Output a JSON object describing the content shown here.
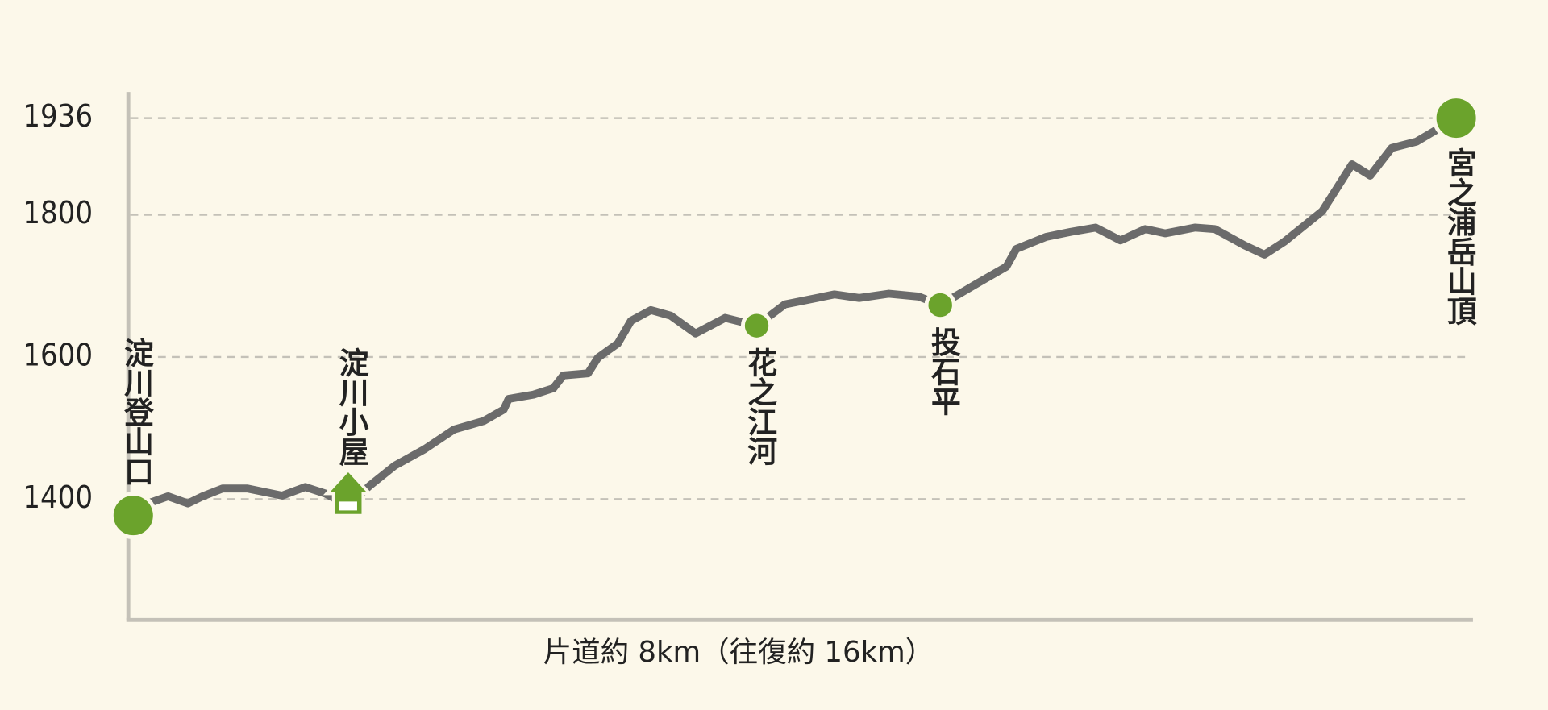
{
  "chart_data": {
    "type": "line",
    "x_label": "片道約 8km（往復約 16km）",
    "xlim": [
      0,
      8
    ],
    "ylim": [
      1230,
      1970
    ],
    "yticks": [
      1400,
      1600,
      1800,
      1936
    ],
    "grid": true,
    "x": [
      0,
      0.09,
      0.21,
      0.33,
      0.42,
      0.54,
      0.69,
      0.9,
      1.04,
      1.16,
      1.3,
      1.43,
      1.58,
      1.76,
      1.94,
      2.12,
      2.24,
      2.27,
      2.42,
      2.54,
      2.6,
      2.75,
      2.81,
      2.93,
      3.01,
      3.13,
      3.25,
      3.4,
      3.58,
      3.77,
      3.94,
      4.09,
      4.24,
      4.39,
      4.57,
      4.75,
      4.88,
      5.1,
      5.28,
      5.34,
      5.52,
      5.67,
      5.82,
      5.97,
      6.12,
      6.24,
      6.42,
      6.54,
      6.72,
      6.84,
      6.96,
      7.19,
      7.37,
      7.48,
      7.61,
      7.76,
      8
    ],
    "series": [
      {
        "color": "#6b6b6b",
        "values": [
          1377,
          1394,
          1404,
          1394,
          1404,
          1415,
          1415,
          1405,
          1417,
          1408,
          1391,
          1419,
          1447,
          1470,
          1498,
          1510,
          1526,
          1541,
          1547,
          1556,
          1574,
          1577,
          1599,
          1619,
          1651,
          1666,
          1658,
          1633,
          1655,
          1644,
          1674,
          1681,
          1688,
          1683,
          1689,
          1685,
          1673,
          1703,
          1727,
          1752,
          1769,
          1776,
          1782,
          1764,
          1780,
          1774,
          1782,
          1780,
          1757,
          1744,
          1762,
          1805,
          1871,
          1855,
          1894,
          1903,
          1936
        ]
      }
    ],
    "marker_color": "#6ba32c",
    "waypoints": [
      {
        "label": "淀川登山口",
        "x": 0,
        "value": 1377,
        "marker": "circle-large",
        "label_position": "above"
      },
      {
        "label": "淀川小屋",
        "x": 1.3,
        "value": 1391,
        "marker": "hut",
        "label_position": "above"
      },
      {
        "label": "花之江河",
        "x": 3.77,
        "value": 1644,
        "marker": "circle",
        "label_position": "below"
      },
      {
        "label": "投石平",
        "x": 4.88,
        "value": 1673,
        "marker": "circle",
        "label_position": "below"
      },
      {
        "label": "宮之浦岳山頂",
        "x": 8,
        "value": 1936,
        "marker": "circle-large",
        "label_position": "below"
      }
    ]
  }
}
